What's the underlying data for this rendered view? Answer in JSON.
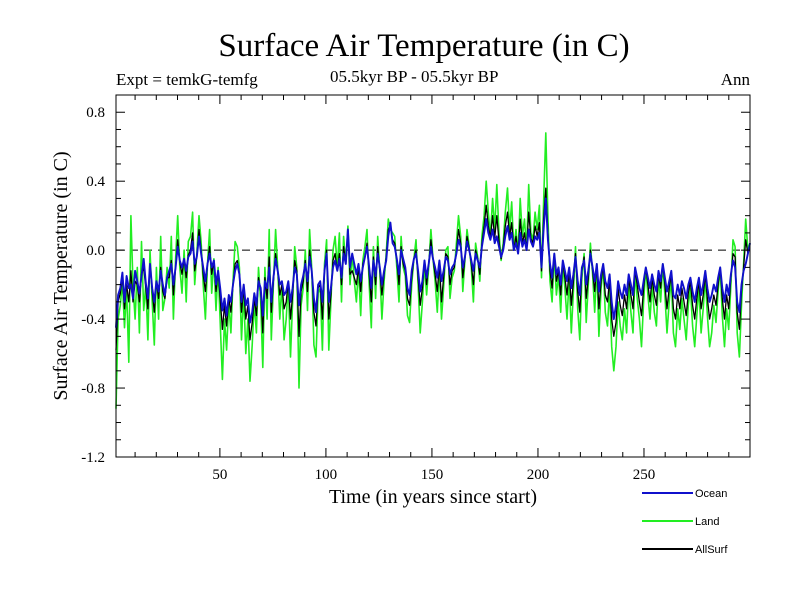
{
  "chart_data": {
    "type": "line",
    "title": "Surface Air Temperature (in C)",
    "experiment": "Expt = temkG-temfg",
    "period": "05.5kyr BP - 05.5kyr BP",
    "season": "Ann",
    "xlabel": "Time (in years since start)",
    "ylabel": "Surface Air Temperature (in C)",
    "xlim": [
      1,
      300
    ],
    "ylim": [
      -1.2,
      0.9
    ],
    "xticks": [
      50,
      100,
      150,
      200,
      250
    ],
    "yticks": [
      0.8,
      0.4,
      0.0,
      -0.4,
      -0.8,
      -1.2
    ],
    "ytick_labels": [
      "0.8",
      "0.4",
      "0.0",
      "-0.4",
      "-0.8",
      "-1.2"
    ],
    "reference_line": 0.0,
    "series": [
      {
        "name": "Ocean",
        "color": "#1010cc",
        "values": [
          -0.45,
          -0.26,
          -0.22,
          -0.13,
          -0.3,
          -0.15,
          -0.22,
          -0.2,
          -0.28,
          -0.12,
          -0.18,
          -0.25,
          -0.15,
          -0.05,
          -0.19,
          -0.28,
          -0.08,
          -0.22,
          -0.3,
          -0.18,
          -0.24,
          -0.12,
          -0.2,
          -0.26,
          -0.16,
          -0.12,
          -0.08,
          -0.2,
          -0.1,
          0.02,
          -0.06,
          -0.1,
          -0.05,
          -0.12,
          -0.04,
          -0.02,
          0.05,
          -0.08,
          -0.04,
          0.08,
          -0.02,
          -0.1,
          -0.18,
          -0.08,
          -0.02,
          -0.1,
          -0.06,
          -0.2,
          -0.12,
          -0.22,
          -0.35,
          -0.28,
          -0.38,
          -0.26,
          -0.3,
          -0.2,
          -0.12,
          -0.08,
          -0.14,
          -0.3,
          -0.2,
          -0.32,
          -0.28,
          -0.42,
          -0.36,
          -0.25,
          -0.32,
          -0.18,
          -0.22,
          -0.38,
          -0.18,
          -0.22,
          -0.1,
          -0.3,
          -0.16,
          -0.05,
          -0.12,
          -0.2,
          -0.18,
          -0.26,
          -0.24,
          -0.18,
          -0.3,
          -0.22,
          -0.1,
          -0.14,
          -0.32,
          -0.2,
          -0.15,
          -0.08,
          -0.18,
          -0.04,
          -0.12,
          -0.28,
          -0.36,
          -0.2,
          -0.18,
          -0.3,
          -0.12,
          -0.02,
          -0.3,
          -0.22,
          -0.1,
          -0.06,
          -0.12,
          -0.05,
          -0.16,
          -0.02,
          -0.08,
          0.12,
          -0.1,
          -0.02,
          -0.08,
          -0.14,
          -0.08,
          -0.18,
          -0.1,
          -0.04,
          0.02,
          -0.1,
          -0.22,
          -0.06,
          -0.15,
          -0.02,
          -0.1,
          -0.2,
          -0.12,
          -0.06,
          0.08,
          0.16,
          0.04,
          0.02,
          -0.05,
          -0.14,
          0.0,
          -0.05,
          -0.1,
          -0.22,
          -0.26,
          -0.12,
          -0.05,
          -0.02,
          -0.12,
          -0.24,
          -0.18,
          -0.06,
          -0.16,
          -0.08,
          0.02,
          -0.05,
          -0.1,
          -0.16,
          -0.06,
          -0.18,
          -0.12,
          -0.04,
          -0.06,
          -0.14,
          -0.1,
          -0.08,
          -0.02,
          0.06,
          0.02,
          -0.1,
          -0.04,
          0.05,
          0.0,
          -0.06,
          -0.12,
          -0.02,
          -0.06,
          -0.1,
          0.02,
          0.1,
          0.18,
          0.1,
          0.06,
          0.12,
          0.04,
          0.08,
          0.02,
          -0.04,
          0.0,
          0.08,
          0.14,
          0.06,
          0.1,
          0.0,
          0.04,
          -0.02,
          0.1,
          0.02,
          0.06,
          0.0,
          0.12,
          0.05,
          0.02,
          0.08,
          0.06,
          0.1,
          -0.1,
          0.12,
          0.3,
          0.06,
          -0.08,
          -0.16,
          -0.02,
          -0.14,
          -0.1,
          -0.2,
          -0.06,
          -0.12,
          -0.18,
          -0.1,
          -0.22,
          -0.14,
          -0.04,
          -0.18,
          -0.26,
          -0.1,
          -0.06,
          -0.2,
          -0.12,
          -0.02,
          -0.1,
          -0.18,
          -0.08,
          -0.24,
          -0.14,
          -0.08,
          -0.18,
          -0.22,
          -0.14,
          -0.3,
          -0.4,
          -0.32,
          -0.18,
          -0.24,
          -0.28,
          -0.2,
          -0.26,
          -0.14,
          -0.2,
          -0.26,
          -0.1,
          -0.16,
          -0.22,
          -0.26,
          -0.18,
          -0.1,
          -0.16,
          -0.22,
          -0.14,
          -0.2,
          -0.24,
          -0.12,
          -0.18,
          -0.08,
          -0.16,
          -0.24,
          -0.18,
          -0.12,
          -0.26,
          -0.28,
          -0.2,
          -0.26,
          -0.18,
          -0.22,
          -0.28,
          -0.2,
          -0.16,
          -0.24,
          -0.3,
          -0.22,
          -0.16,
          -0.26,
          -0.2,
          -0.12,
          -0.22,
          -0.3,
          -0.26,
          -0.2,
          -0.24,
          -0.16,
          -0.1,
          -0.22,
          -0.3,
          -0.2,
          -0.26,
          -0.14,
          -0.06,
          -0.1,
          -0.3,
          -0.36,
          -0.2,
          -0.12,
          -0.08,
          -0.02,
          0.04
        ]
      },
      {
        "name": "Land",
        "color": "#22ee22",
        "values": [
          -0.92,
          -0.4,
          -0.32,
          -0.18,
          -0.45,
          -0.22,
          -0.65,
          0.2,
          -0.2,
          -0.4,
          -0.1,
          -0.48,
          0.05,
          -0.35,
          -0.2,
          -0.52,
          0.0,
          -0.3,
          -0.55,
          -0.1,
          -0.4,
          0.08,
          -0.35,
          -0.28,
          -0.1,
          -0.22,
          0.08,
          -0.4,
          -0.05,
          0.2,
          -0.1,
          -0.25,
          0.0,
          -0.3,
          0.05,
          0.08,
          0.22,
          -0.2,
          -0.02,
          0.2,
          0.05,
          -0.2,
          -0.4,
          -0.08,
          0.12,
          -0.25,
          -0.05,
          -0.35,
          -0.1,
          -0.42,
          -0.75,
          -0.4,
          -0.58,
          -0.3,
          -0.48,
          -0.18,
          0.05,
          0.02,
          -0.1,
          -0.52,
          -0.24,
          -0.6,
          -0.4,
          -0.76,
          -0.55,
          -0.3,
          -0.48,
          -0.1,
          -0.3,
          -0.68,
          -0.1,
          -0.4,
          0.12,
          -0.52,
          -0.2,
          0.12,
          -0.1,
          -0.4,
          -0.2,
          -0.52,
          -0.4,
          -0.18,
          -0.62,
          -0.3,
          0.02,
          -0.1,
          -0.8,
          -0.32,
          -0.22,
          0.0,
          -0.35,
          0.12,
          -0.1,
          -0.55,
          -0.62,
          -0.25,
          -0.22,
          -0.58,
          -0.08,
          0.06,
          -0.58,
          -0.3,
          0.0,
          0.08,
          -0.1,
          0.1,
          -0.3,
          0.08,
          -0.08,
          0.14,
          -0.2,
          -0.02,
          -0.18,
          -0.3,
          -0.1,
          -0.38,
          -0.06,
          0.02,
          0.12,
          -0.2,
          -0.45,
          0.02,
          -0.28,
          0.08,
          -0.12,
          -0.4,
          -0.18,
          -0.02,
          0.18,
          0.12,
          0.1,
          0.08,
          -0.1,
          -0.3,
          0.08,
          -0.1,
          -0.15,
          -0.38,
          -0.42,
          -0.2,
          -0.05,
          0.06,
          -0.2,
          -0.48,
          -0.3,
          -0.08,
          -0.26,
          -0.1,
          0.12,
          -0.05,
          -0.18,
          -0.36,
          -0.1,
          -0.4,
          -0.22,
          0.0,
          0.02,
          -0.28,
          -0.16,
          -0.12,
          0.04,
          0.2,
          0.08,
          -0.24,
          -0.06,
          0.12,
          0.02,
          -0.1,
          -0.3,
          0.04,
          -0.04,
          -0.18,
          0.08,
          0.2,
          0.4,
          0.22,
          0.08,
          0.3,
          0.12,
          0.38,
          0.1,
          -0.06,
          0.04,
          0.22,
          0.36,
          0.12,
          0.28,
          0.0,
          0.12,
          -0.02,
          0.3,
          0.08,
          0.18,
          0.0,
          0.38,
          0.1,
          0.06,
          0.22,
          0.12,
          0.26,
          -0.16,
          0.28,
          0.68,
          0.2,
          -0.18,
          -0.3,
          -0.02,
          -0.26,
          -0.14,
          -0.36,
          -0.08,
          -0.22,
          -0.4,
          -0.16,
          -0.48,
          -0.24,
          0.02,
          -0.34,
          -0.52,
          -0.16,
          -0.02,
          -0.42,
          -0.2,
          0.04,
          -0.14,
          -0.36,
          -0.08,
          -0.5,
          -0.22,
          -0.1,
          -0.36,
          -0.44,
          -0.22,
          -0.56,
          -0.7,
          -0.56,
          -0.3,
          -0.44,
          -0.52,
          -0.34,
          -0.48,
          -0.2,
          -0.36,
          -0.48,
          -0.12,
          -0.28,
          -0.4,
          -0.56,
          -0.3,
          -0.1,
          -0.26,
          -0.4,
          -0.2,
          -0.36,
          -0.44,
          -0.16,
          -0.3,
          -0.08,
          -0.26,
          -0.48,
          -0.3,
          -0.16,
          -0.48,
          -0.56,
          -0.34,
          -0.46,
          -0.28,
          -0.4,
          -0.52,
          -0.32,
          -0.22,
          -0.44,
          -0.56,
          -0.38,
          -0.22,
          -0.48,
          -0.34,
          -0.16,
          -0.38,
          -0.56,
          -0.48,
          -0.32,
          -0.42,
          -0.24,
          -0.1,
          -0.38,
          -0.56,
          -0.34,
          -0.46,
          -0.2,
          0.06,
          0.02,
          -0.48,
          -0.62,
          -0.32,
          -0.08,
          0.18,
          0.0,
          0.04
        ]
      },
      {
        "name": "AllSurf",
        "color": "#000000",
        "values": [
          -0.58,
          -0.3,
          -0.25,
          -0.16,
          -0.34,
          -0.2,
          -0.3,
          -0.12,
          -0.3,
          -0.18,
          -0.2,
          -0.3,
          -0.14,
          -0.1,
          -0.22,
          -0.34,
          -0.08,
          -0.24,
          -0.36,
          -0.18,
          -0.28,
          -0.1,
          -0.24,
          -0.28,
          -0.16,
          -0.16,
          -0.06,
          -0.26,
          -0.1,
          0.06,
          -0.07,
          -0.14,
          -0.05,
          -0.16,
          -0.03,
          0.0,
          0.1,
          -0.12,
          -0.04,
          0.12,
          0.0,
          -0.14,
          -0.24,
          -0.08,
          0.02,
          -0.14,
          -0.06,
          -0.24,
          -0.12,
          -0.28,
          -0.46,
          -0.32,
          -0.44,
          -0.28,
          -0.36,
          -0.2,
          -0.08,
          -0.06,
          -0.14,
          -0.36,
          -0.22,
          -0.4,
          -0.32,
          -0.52,
          -0.42,
          -0.28,
          -0.38,
          -0.16,
          -0.24,
          -0.48,
          -0.16,
          -0.28,
          -0.04,
          -0.36,
          -0.18,
          -0.02,
          -0.12,
          -0.26,
          -0.2,
          -0.34,
          -0.3,
          -0.18,
          -0.4,
          -0.26,
          -0.06,
          -0.12,
          -0.5,
          -0.24,
          -0.18,
          -0.06,
          -0.24,
          0.0,
          -0.12,
          -0.36,
          -0.44,
          -0.22,
          -0.2,
          -0.4,
          -0.12,
          0.0,
          -0.4,
          -0.26,
          -0.06,
          -0.02,
          -0.12,
          -0.02,
          -0.2,
          0.02,
          -0.08,
          0.12,
          -0.14,
          -0.12,
          -0.16,
          -0.2,
          -0.1,
          -0.24,
          -0.08,
          -0.04,
          0.04,
          -0.14,
          -0.3,
          -0.04,
          -0.2,
          0.02,
          -0.12,
          -0.26,
          -0.14,
          -0.04,
          0.12,
          0.14,
          0.06,
          0.04,
          -0.06,
          -0.2,
          0.02,
          -0.08,
          -0.12,
          -0.28,
          -0.32,
          -0.16,
          -0.05,
          0.0,
          -0.16,
          -0.32,
          -0.22,
          -0.06,
          -0.2,
          -0.08,
          0.06,
          -0.05,
          -0.14,
          -0.24,
          -0.08,
          -0.3,
          -0.16,
          -0.02,
          -0.04,
          -0.2,
          -0.12,
          -0.1,
          -0.01,
          0.12,
          0.04,
          -0.16,
          -0.05,
          0.08,
          0.01,
          -0.08,
          -0.2,
          0.0,
          -0.05,
          -0.14,
          0.04,
          0.14,
          0.26,
          0.14,
          0.07,
          0.2,
          0.07,
          0.2,
          0.05,
          -0.05,
          0.02,
          0.14,
          0.22,
          0.08,
          0.16,
          0.0,
          0.08,
          -0.02,
          0.18,
          0.04,
          0.1,
          0.0,
          0.22,
          0.07,
          0.04,
          0.14,
          0.08,
          0.16,
          -0.12,
          0.18,
          0.36,
          0.1,
          -0.12,
          -0.22,
          -0.02,
          -0.18,
          -0.12,
          -0.26,
          -0.07,
          -0.16,
          -0.26,
          -0.12,
          -0.32,
          -0.18,
          -0.02,
          -0.24,
          -0.36,
          -0.12,
          -0.04,
          -0.28,
          -0.16,
          0.0,
          -0.12,
          -0.24,
          -0.08,
          -0.34,
          -0.18,
          -0.09,
          -0.26,
          -0.3,
          -0.17,
          -0.4,
          -0.5,
          -0.42,
          -0.22,
          -0.32,
          -0.38,
          -0.26,
          -0.34,
          -0.16,
          -0.26,
          -0.34,
          -0.11,
          -0.2,
          -0.3,
          -0.38,
          -0.22,
          -0.1,
          -0.2,
          -0.3,
          -0.16,
          -0.26,
          -0.32,
          -0.14,
          -0.22,
          -0.08,
          -0.2,
          -0.34,
          -0.22,
          -0.14,
          -0.34,
          -0.4,
          -0.26,
          -0.34,
          -0.22,
          -0.3,
          -0.38,
          -0.25,
          -0.18,
          -0.32,
          -0.4,
          -0.28,
          -0.18,
          -0.34,
          -0.26,
          -0.14,
          -0.28,
          -0.4,
          -0.34,
          -0.26,
          -0.32,
          -0.2,
          -0.1,
          -0.28,
          -0.4,
          -0.26,
          -0.34,
          -0.16,
          -0.02,
          -0.04,
          -0.36,
          -0.46,
          -0.24,
          -0.1,
          0.06,
          -0.02,
          0.04
        ]
      }
    ],
    "legend_position": "bottom-right"
  }
}
